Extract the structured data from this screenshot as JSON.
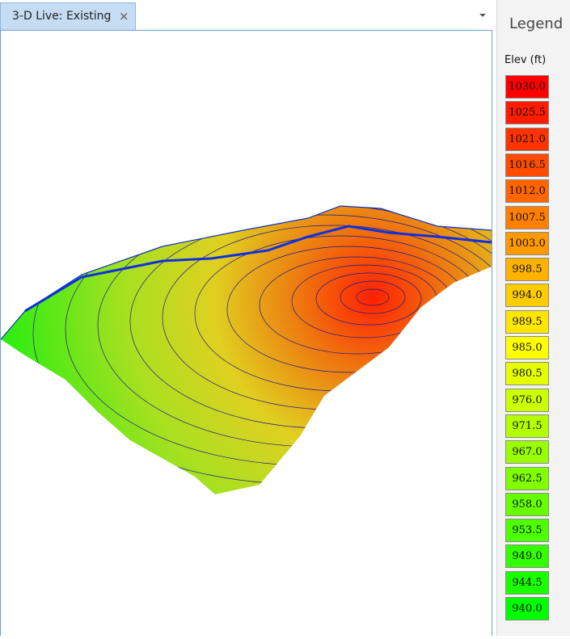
{
  "tab": {
    "title": "3-D Live: Existing",
    "close": "×"
  },
  "legend": {
    "title": "Legend",
    "subtitle": "Elev (ft)",
    "entries": [
      {
        "label": "1030.0",
        "color": "#ff0000"
      },
      {
        "label": "1025.5",
        "color": "#ff1c00"
      },
      {
        "label": "1021.0",
        "color": "#ff3300"
      },
      {
        "label": "1016.5",
        "color": "#ff4d00"
      },
      {
        "label": "1012.0",
        "color": "#ff6600"
      },
      {
        "label": "1007.5",
        "color": "#ff8000"
      },
      {
        "label": "1003.0",
        "color": "#ff9900"
      },
      {
        "label": "998.5",
        "color": "#ffb300"
      },
      {
        "label": "994.0",
        "color": "#ffcc00"
      },
      {
        "label": "989.5",
        "color": "#ffe600"
      },
      {
        "label": "985.0",
        "color": "#ffff00"
      },
      {
        "label": "980.5",
        "color": "#e6ff00"
      },
      {
        "label": "976.0",
        "color": "#ccff00"
      },
      {
        "label": "971.5",
        "color": "#b3ff00"
      },
      {
        "label": "967.0",
        "color": "#99ff00"
      },
      {
        "label": "962.5",
        "color": "#80ff00"
      },
      {
        "label": "958.0",
        "color": "#66ff00"
      },
      {
        "label": "953.5",
        "color": "#4dff00"
      },
      {
        "label": "949.0",
        "color": "#33ff00"
      },
      {
        "label": "944.5",
        "color": "#1aff00"
      },
      {
        "label": "940.0",
        "color": "#00ff00"
      }
    ]
  }
}
